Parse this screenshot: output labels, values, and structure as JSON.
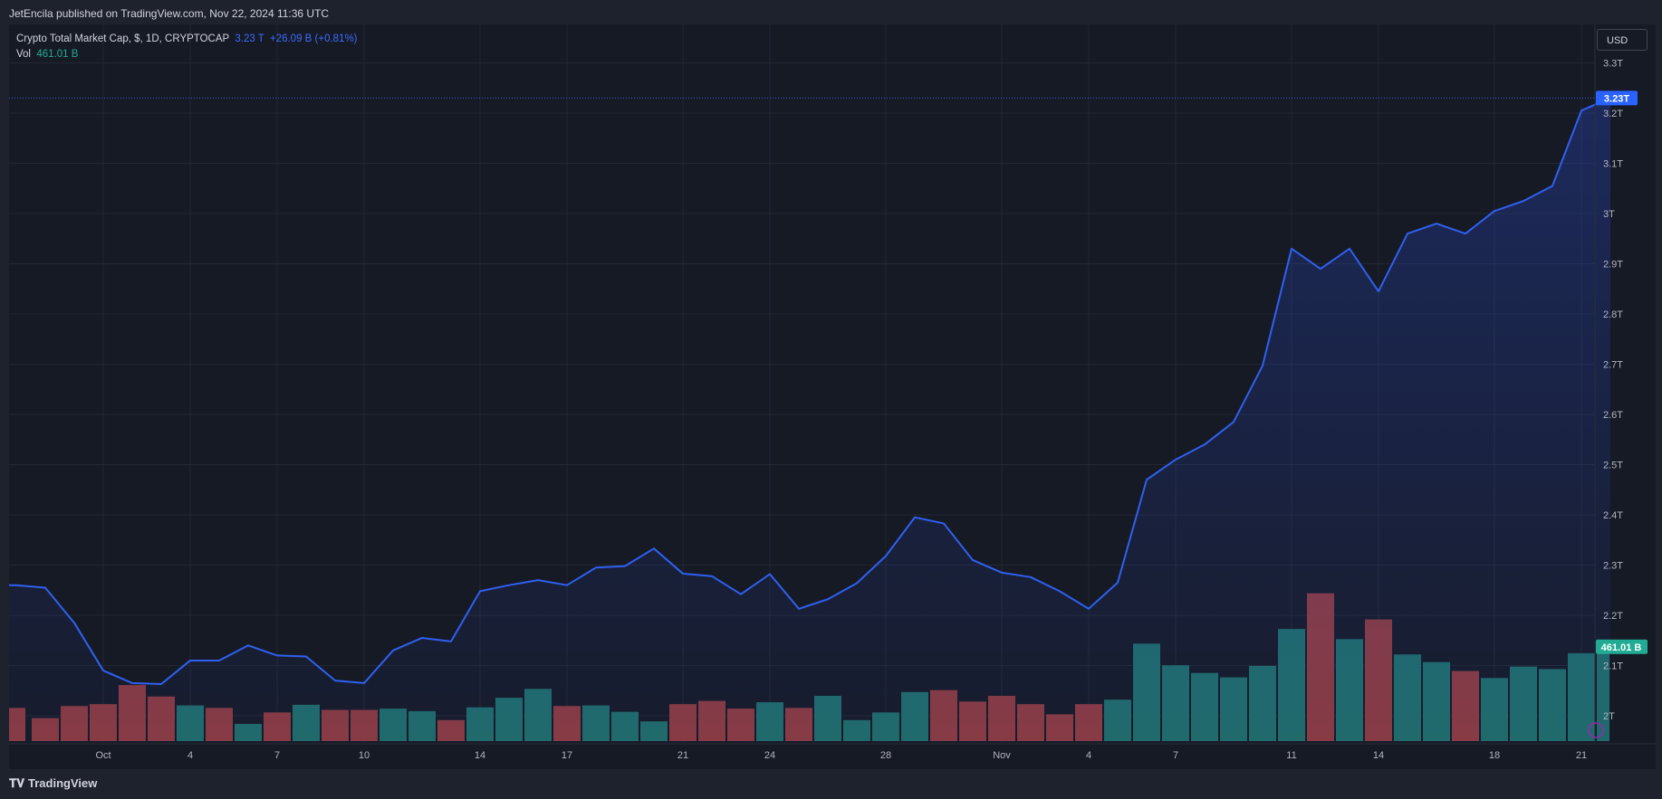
{
  "header": {
    "publish_text": "JetEncila published on TradingView.com, Nov 22, 2024 11:36 UTC"
  },
  "legend": {
    "symbol": "Crypto Total Market Cap, $, 1D, CRYPTOCAP",
    "price": "3.23 T",
    "change": "+26.09 B (+0.81%)",
    "vol_label": "Vol",
    "vol_value": "461.01 B"
  },
  "currency_button": "USD",
  "footer": {
    "brand": "TradingView"
  },
  "colors": {
    "line": "#3060f0",
    "up_volume": "#1f6b68",
    "down_volume": "#8a3a3f",
    "price_tag": "#2962ff",
    "volume_tag": "#22ab94"
  },
  "chart_data": {
    "type": "line",
    "ylim": [
      1.95,
      3.36
    ],
    "y_ticks": [
      "2T",
      "2.1T",
      "2.2T",
      "2.3T",
      "2.4T",
      "2.5T",
      "2.6T",
      "2.7T",
      "2.8T",
      "2.9T",
      "3T",
      "3.1T",
      "3.2T",
      "3.3T"
    ],
    "y_tick_values": [
      2.0,
      2.1,
      2.2,
      2.3,
      2.4,
      2.5,
      2.6,
      2.7,
      2.8,
      2.9,
      3.0,
      3.1,
      3.2,
      3.3
    ],
    "x_tick_labels": [
      "Oct",
      "4",
      "7",
      "10",
      "14",
      "17",
      "21",
      "24",
      "28",
      "Nov",
      "4",
      "7",
      "11",
      "14",
      "18",
      "21"
    ],
    "x_tick_index": [
      3,
      6,
      9,
      12,
      16,
      19,
      23,
      26,
      30,
      34,
      37,
      40,
      44,
      47,
      51,
      54
    ],
    "last_price_label": "3.23T",
    "last_volume_label": "461.01 B",
    "series": [
      {
        "values": [
          2.26,
          2.255,
          2.185,
          2.09,
          2.065,
          2.063,
          2.11,
          2.11,
          2.14,
          2.12,
          2.118,
          2.07,
          2.065,
          2.13,
          2.155,
          2.148,
          2.248,
          2.26,
          2.27,
          2.26,
          2.295,
          2.298,
          2.333,
          2.283,
          2.278,
          2.242,
          2.282,
          2.213,
          2.232,
          2.264,
          2.318,
          2.395,
          2.383,
          2.31,
          2.285,
          2.276,
          2.248,
          2.213,
          2.265,
          2.47,
          2.51,
          2.54,
          2.585,
          2.697,
          2.93,
          2.89,
          2.93,
          2.845,
          2.96,
          2.98,
          2.96,
          3.005,
          3.025,
          3.055,
          3.205,
          3.23
        ]
      }
    ],
    "volume": {
      "values": [
        52,
        36,
        55,
        58,
        88,
        70,
        56,
        52,
        27,
        45,
        57,
        49,
        49,
        51,
        47,
        33,
        53,
        68,
        82,
        55,
        56,
        46,
        31,
        58,
        63,
        51,
        61,
        52,
        71,
        33,
        45,
        77,
        80,
        62,
        71,
        58,
        42,
        58,
        65,
        153,
        119,
        107,
        100,
        118,
        176,
        232,
        160,
        191,
        136,
        124,
        110,
        99,
        117,
        113,
        138,
        148
      ],
      "direction": [
        "down",
        "down",
        "down",
        "down",
        "down",
        "down",
        "up",
        "down",
        "up",
        "down",
        "up",
        "down",
        "down",
        "up",
        "up",
        "down",
        "up",
        "up",
        "up",
        "down",
        "up",
        "up",
        "up",
        "down",
        "down",
        "down",
        "up",
        "down",
        "up",
        "up",
        "up",
        "up",
        "down",
        "down",
        "down",
        "down",
        "down",
        "down",
        "up",
        "up",
        "up",
        "up",
        "up",
        "up",
        "up",
        "down",
        "up",
        "down",
        "up",
        "up",
        "down",
        "up",
        "up",
        "up",
        "up",
        "up"
      ]
    }
  }
}
